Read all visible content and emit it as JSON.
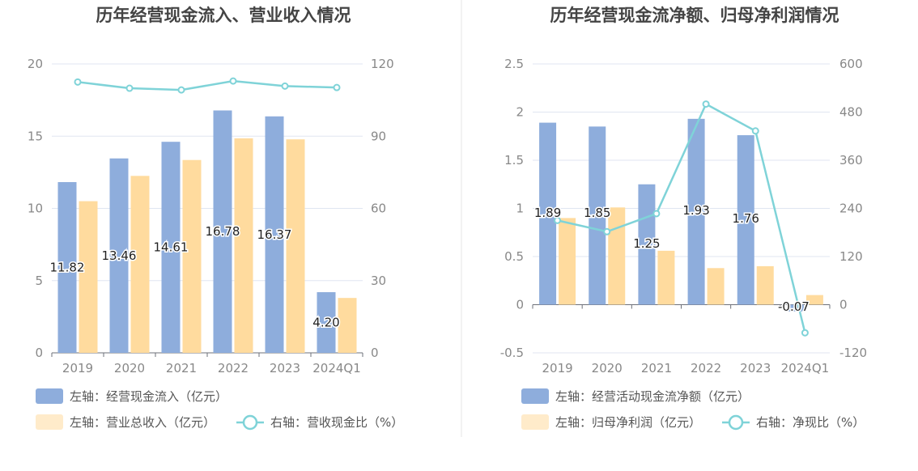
{
  "colors": {
    "bar1": "#8eaddc",
    "bar2": "#ffdb9e",
    "line": "#7fd3d8",
    "grid": "#e0e6f1",
    "axis": "#6e7079"
  },
  "chart_data": [
    {
      "type": "bar",
      "title": "历年经营现金流入、营业收入情况",
      "categories": [
        "2019",
        "2020",
        "2021",
        "2022",
        "2023",
        "2024Q1"
      ],
      "left_axis": {
        "min": 0,
        "max": 20,
        "ticks": [
          "0",
          "5",
          "10",
          "15",
          "20"
        ]
      },
      "right_axis": {
        "min": 0,
        "max": 120,
        "ticks": [
          "0",
          "30",
          "60",
          "90",
          "120"
        ]
      },
      "series": [
        {
          "name": "左轴：经营现金流入（亿元）",
          "axis": "left",
          "kind": "bar",
          "values": [
            11.82,
            13.46,
            14.61,
            16.78,
            16.37,
            4.2
          ],
          "labels": [
            "11.82",
            "13.46",
            "14.61",
            "16.78",
            "16.37",
            "4.20"
          ]
        },
        {
          "name": "左轴：营业总收入（亿元）",
          "axis": "left",
          "kind": "bar",
          "values": [
            10.5,
            12.25,
            13.35,
            14.85,
            14.78,
            3.8
          ]
        },
        {
          "name": "右轴：营收现金比（%）",
          "axis": "right",
          "kind": "line",
          "values": [
            112.5,
            109.9,
            109.2,
            112.9,
            110.8,
            110.2
          ]
        }
      ]
    },
    {
      "type": "bar",
      "title": "历年经营现金流净额、归母净利润情况",
      "categories": [
        "2019",
        "2020",
        "2021",
        "2022",
        "2023",
        "2024Q1"
      ],
      "left_axis": {
        "min": -0.5,
        "max": 2.5,
        "ticks": [
          "-0.5",
          "0",
          "0.5",
          "1",
          "1.5",
          "2",
          "2.5"
        ]
      },
      "right_axis": {
        "min": -120,
        "max": 600,
        "ticks": [
          "-120",
          "0",
          "120",
          "240",
          "360",
          "480",
          "600"
        ]
      },
      "series": [
        {
          "name": "左轴：经营活动现金流净额（亿元）",
          "axis": "left",
          "kind": "bar",
          "values": [
            1.89,
            1.85,
            1.25,
            1.93,
            1.76,
            -0.07
          ],
          "labels": [
            "1.89",
            "1.85",
            "1.25",
            "1.93",
            "1.76",
            "-0.07"
          ]
        },
        {
          "name": "左轴：归母净利润（亿元）",
          "axis": "left",
          "kind": "bar",
          "values": [
            0.9,
            1.01,
            0.56,
            0.38,
            0.4,
            0.1
          ]
        },
        {
          "name": "右轴：净现比（%）",
          "axis": "right",
          "kind": "line",
          "values": [
            210,
            182,
            227,
            500,
            433,
            -70
          ]
        }
      ]
    }
  ]
}
